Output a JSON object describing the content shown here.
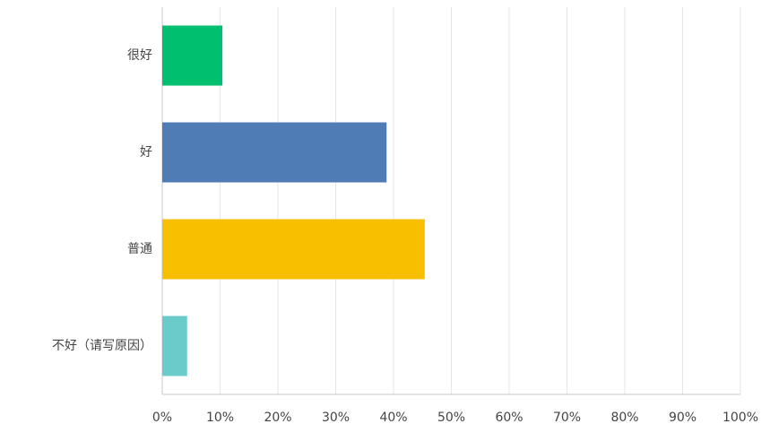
{
  "chart_data": {
    "type": "bar",
    "orientation": "horizontal",
    "categories": [
      "很好",
      "好",
      "普通",
      "不好（请写原因）"
    ],
    "values": [
      10.4,
      38.8,
      45.4,
      4.3
    ],
    "colors": [
      "#00bf6f",
      "#507cb6",
      "#f7bf00",
      "#6bcbca"
    ],
    "xlim": [
      0,
      100
    ],
    "xticks": [
      {
        "value": 0,
        "label": "0%"
      },
      {
        "value": 10,
        "label": "10%"
      },
      {
        "value": 20,
        "label": "20%"
      },
      {
        "value": 30,
        "label": "30%"
      },
      {
        "value": 40,
        "label": "40%"
      },
      {
        "value": 50,
        "label": "50%"
      },
      {
        "value": 60,
        "label": "60%"
      },
      {
        "value": 70,
        "label": "70%"
      },
      {
        "value": 80,
        "label": "80%"
      },
      {
        "value": 90,
        "label": "90%"
      },
      {
        "value": 100,
        "label": "100%"
      }
    ],
    "grid": true
  }
}
